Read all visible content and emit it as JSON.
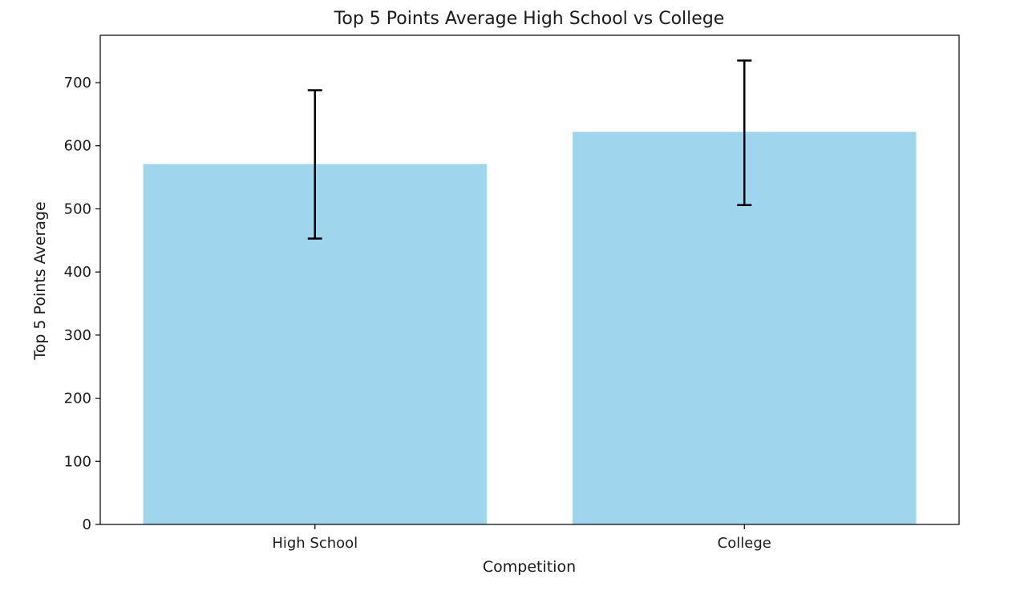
{
  "chart_data": {
    "type": "bar",
    "title": "Top 5 Points Average High School vs College",
    "xlabel": "Competition",
    "ylabel": "Top 5 Points Average",
    "categories": [
      "High School",
      "College"
    ],
    "values": [
      571,
      622
    ],
    "error": [
      [
        453,
        688
      ],
      [
        506,
        735
      ]
    ],
    "ylim": [
      0,
      775
    ],
    "yticks": [
      0,
      100,
      200,
      300,
      400,
      500,
      600,
      700
    ],
    "grid": false,
    "colors": {
      "bar": "#a0d6ed",
      "errorbar": "#000000",
      "axis": "#000000"
    }
  }
}
